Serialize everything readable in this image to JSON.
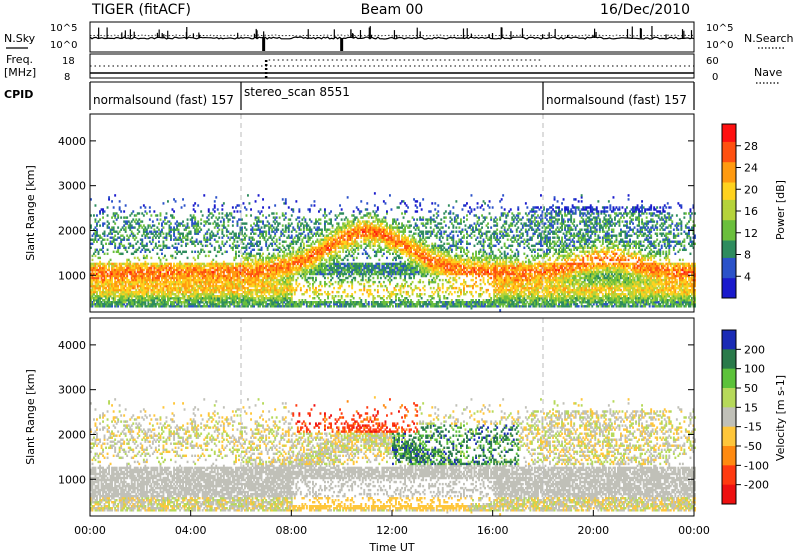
{
  "header": {
    "station": "TIGER (fitACF)",
    "beam": "Beam 00",
    "date": "16/Dec/2010"
  },
  "top_strip": {
    "left_label_1": "N.Sky",
    "left_label_2": "Freq.",
    "left_label_3": "[MHz]",
    "left_label_4": "CPID",
    "right_label_1": "N.Search",
    "right_label_2": "Nave",
    "noise_ticks_left": [
      "10^5",
      "10^0"
    ],
    "noise_ticks_right": [
      "10^5",
      "10^0"
    ],
    "freq_ticks": [
      "18",
      "8"
    ],
    "nave_ticks": [
      "60",
      "0"
    ]
  },
  "cpid": {
    "segments": [
      {
        "label": "normalsound (fast) 157",
        "start_hour": 0,
        "end_hour": 6
      },
      {
        "label": "stereo_scan 8551",
        "start_hour": 6,
        "end_hour": 18
      },
      {
        "label": "normalsound (fast) 157",
        "start_hour": 18,
        "end_hour": 24
      }
    ]
  },
  "chart_data": [
    {
      "type": "heatmap",
      "quantity": "Power",
      "ylabel": "Slant Range [km]",
      "xlabel": "",
      "x_range_hours": [
        0,
        24
      ],
      "ylim": [
        180,
        4600
      ],
      "yticks": [
        "4000",
        "3000",
        "2000",
        "1000"
      ],
      "ytick_values": [
        4000,
        3000,
        2000,
        1000
      ],
      "colorbar": {
        "label": "Power [dB]",
        "ticks": [
          "28",
          "24",
          "20",
          "16",
          "12",
          "8",
          "4"
        ],
        "tick_values": [
          28,
          24,
          20,
          16,
          12,
          8,
          4
        ],
        "range": [
          0,
          32
        ],
        "colors": [
          "#1a1acc",
          "#2b52c9",
          "#2e8c5e",
          "#6abf3c",
          "#b5d33a",
          "#ffd21e",
          "#ff9a10",
          "#ff5010",
          "#ff1010"
        ]
      }
    },
    {
      "type": "heatmap",
      "quantity": "Velocity",
      "ylabel": "Slant Range [km]",
      "xlabel": "Time UT",
      "x_range_hours": [
        0,
        24
      ],
      "ylim": [
        180,
        4600
      ],
      "yticks": [
        "4000",
        "3000",
        "2000",
        "1000"
      ],
      "ytick_values": [
        4000,
        3000,
        2000,
        1000
      ],
      "xticks": [
        "00:00",
        "04:00",
        "08:00",
        "12:00",
        "16:00",
        "20:00",
        "00:00"
      ],
      "xtick_hours": [
        0,
        4,
        8,
        12,
        16,
        20,
        24
      ],
      "colorbar": {
        "label": "Velocity [m s-1]",
        "ticks": [
          "200",
          "100",
          "50",
          "15",
          "-15",
          "-50",
          "-100",
          "-200"
        ],
        "tick_values": [
          200,
          100,
          50,
          15,
          -15,
          -50,
          -100,
          -200
        ],
        "band_colors": [
          "#1a2bb5",
          "#2a7a4a",
          "#5cc23a",
          "#b6d95a",
          "#c0c0b8",
          "#ffc63a",
          "#ff8a10",
          "#ff3a10",
          "#ee1010"
        ]
      }
    }
  ]
}
